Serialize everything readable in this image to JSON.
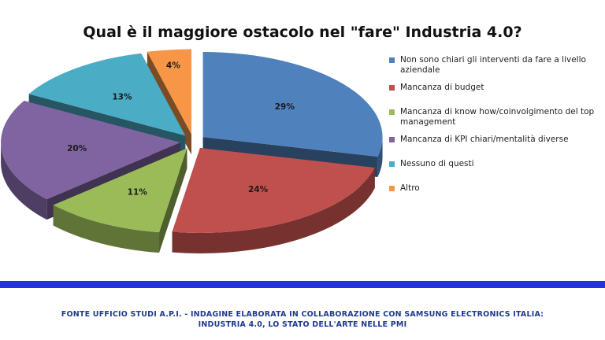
{
  "chart_data": {
    "type": "pie",
    "title": "Qual è il maggiore ostacolo nel \"fare\" Industria 4.0?",
    "slices": [
      {
        "label": "Non sono chiari gli interventi da fare a livello aziendale",
        "value": 29,
        "display": "29%",
        "color": "#4f81bd"
      },
      {
        "label": "Mancanza di budget",
        "value": 24,
        "display": "24%",
        "color": "#c0504d"
      },
      {
        "label": "Mancanza di know how/coinvolgimento del top management",
        "value": 11,
        "display": "11%",
        "color": "#9bbb59"
      },
      {
        "label": "Mancanza di KPI chiari/mentalità diverse",
        "value": 20,
        "display": "20%",
        "color": "#8064a2"
      },
      {
        "label": "Nessuno di questi",
        "value": 13,
        "display": "13%",
        "color": "#4bacc6"
      },
      {
        "label": "Altro",
        "value": 4,
        "display": "4%",
        "color": "#f79646"
      }
    ],
    "legend_position": "right",
    "exploded": true,
    "three_d": true
  },
  "footer": {
    "line1": "FONTE UFFICIO STUDI A.P.I. - INDAGINE ELABORATA IN COLLABORAZIONE CON SAMSUNG ELECTRONICS ITALIA:",
    "line2": "INDUSTRIA 4.0, LO STATO DELL'ARTE NELLE PMI"
  },
  "colors": {
    "divider": "#2233d6",
    "footer_text": "#1f3a8f"
  }
}
